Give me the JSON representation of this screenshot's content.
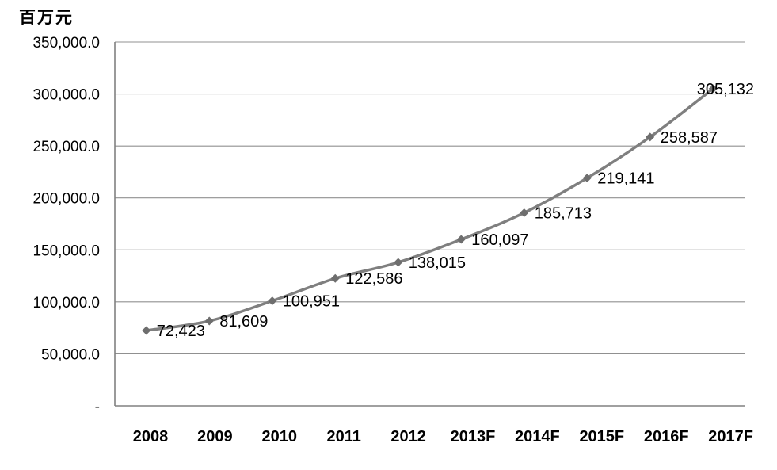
{
  "chart_data": {
    "type": "line",
    "title": "百万元",
    "categories": [
      "2008",
      "2009",
      "2010",
      "2011",
      "2012",
      "2013F",
      "2014F",
      "2015F",
      "2016F",
      "2017F"
    ],
    "values": [
      72423,
      81609,
      100951,
      122586,
      138015,
      160097,
      185713,
      219141,
      258587,
      305132
    ],
    "data_labels": [
      "72,423",
      "81,609",
      "100,951",
      "122,586",
      "138,015",
      "160,097",
      "185,713",
      "219,141",
      "258,587",
      "305,132"
    ],
    "yticks": [
      {
        "value": 0,
        "label": "-"
      },
      {
        "value": 50000,
        "label": "50,000.0"
      },
      {
        "value": 100000,
        "label": "100,000.0"
      },
      {
        "value": 150000,
        "label": "150,000.0"
      },
      {
        "value": 200000,
        "label": "200,000.0"
      },
      {
        "value": 250000,
        "label": "250,000.0"
      },
      {
        "value": 300000,
        "label": "300,000.0"
      },
      {
        "value": 350000,
        "label": "350,000.0"
      }
    ],
    "ylim": [
      0,
      350000
    ],
    "grid": true,
    "legend_position": "none",
    "smooth_line": true,
    "marker_shape": "diamond",
    "colors": {
      "line": "#7f7f7f",
      "marker": "#6e6e6e",
      "gridline": "#909090",
      "axis": "#808080",
      "text": "#000000"
    }
  }
}
